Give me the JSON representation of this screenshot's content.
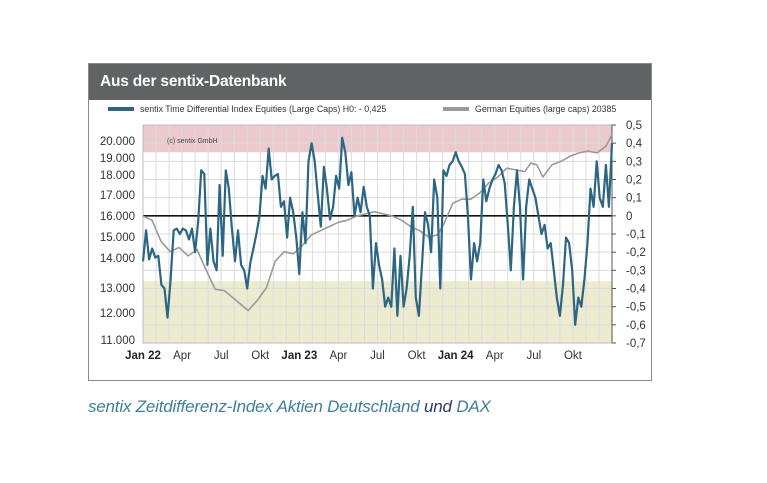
{
  "header": {
    "title": "Aus der sentix-Datenbank"
  },
  "caption": {
    "part1": "sentix Zeitdifferenz-Index Aktien Deutschland",
    "and_word": "und",
    "part2": "DAX"
  },
  "chart_data": {
    "type": "line",
    "copyright": "(c) sentix GmbH",
    "x_ticks": [
      {
        "label": "Jan 22",
        "bold": true,
        "week": 0
      },
      {
        "label": "Apr",
        "bold": false,
        "week": 13
      },
      {
        "label": "Jul",
        "bold": false,
        "week": 26
      },
      {
        "label": "Okt",
        "bold": false,
        "week": 39
      },
      {
        "label": "Jan 23",
        "bold": true,
        "week": 52
      },
      {
        "label": "Apr",
        "bold": false,
        "week": 65
      },
      {
        "label": "Jul",
        "bold": false,
        "week": 78
      },
      {
        "label": "Okt",
        "bold": false,
        "week": 91
      },
      {
        "label": "Jan 24",
        "bold": true,
        "week": 104
      },
      {
        "label": "Apr",
        "bold": false,
        "week": 117
      },
      {
        "label": "Jul",
        "bold": false,
        "week": 130
      },
      {
        "label": "Okt",
        "bold": false,
        "week": 143
      }
    ],
    "x_range_weeks": [
      0,
      156
    ],
    "left_axis": {
      "ticks": [
        "20.000",
        "19.000",
        "18.000",
        "17.000",
        "16.000",
        "15.000",
        "14.000",
        "13.000",
        "12.000",
        "11.000"
      ],
      "values": [
        20000,
        19000,
        18000,
        17000,
        16000,
        15000,
        14000,
        13000,
        12000,
        11000
      ]
    },
    "right_axis": {
      "ticks": [
        "0,5",
        "0,4",
        "0,3",
        "0,2",
        "0,1",
        "0",
        "-0,1",
        "-0,2",
        "-0,3",
        "-0,4",
        "-0,5",
        "-0,6",
        "-0,7"
      ],
      "range": [
        -0.7,
        0.5
      ]
    },
    "bands": [
      {
        "name": "upper-extreme-zone",
        "from": 0.35,
        "to": 0.5,
        "color": "#ecc9cd"
      },
      {
        "name": "lower-extreme-zone",
        "from": -0.7,
        "to": -0.36,
        "color": "#ecebd0"
      }
    ],
    "series": [
      {
        "name": "sentix Time Differential  Index Equities (Large Caps) H0: - 0,425",
        "axis": "right",
        "color": "#2c6683",
        "values": [
          -0.25,
          -0.08,
          -0.24,
          -0.18,
          -0.23,
          -0.22,
          -0.38,
          -0.4,
          -0.56,
          -0.35,
          -0.08,
          -0.07,
          -0.1,
          -0.07,
          -0.08,
          -0.13,
          -0.07,
          -0.2,
          -0.03,
          0.25,
          0.23,
          -0.27,
          -0.07,
          -0.25,
          -0.3,
          0.17,
          -0.22,
          0.25,
          0.15,
          -0.07,
          -0.25,
          -0.08,
          -0.27,
          -0.3,
          -0.4,
          -0.26,
          -0.18,
          -0.1,
          0.0,
          0.22,
          0.15,
          0.37,
          0.2,
          0.22,
          0.23,
          0.05,
          0.08,
          -0.12,
          0.1,
          0.02,
          -0.12,
          -0.32,
          0.02,
          -0.15,
          0.3,
          0.4,
          0.3,
          0.12,
          -0.06,
          0.27,
          0.15,
          -0.02,
          0.05,
          0.22,
          0.15,
          0.43,
          0.35,
          0.17,
          0.24,
          0.0,
          0.1,
          0.02,
          0.16,
          0.05,
          0.0,
          -0.4,
          -0.15,
          -0.27,
          -0.35,
          -0.5,
          -0.45,
          -0.5,
          -0.18,
          -0.55,
          -0.22,
          -0.5,
          -0.4,
          -0.22,
          0.05,
          -0.45,
          -0.55,
          -0.28,
          0.02,
          -0.05,
          -0.2,
          0.2,
          0.1,
          -0.4,
          0.25,
          0.22,
          0.28,
          0.3,
          0.35,
          0.3,
          0.27,
          0.23,
          0.0,
          -0.35,
          -0.15,
          -0.25,
          -0.15,
          0.2,
          0.08,
          0.15,
          0.2,
          0.23,
          0.28,
          0.25,
          0.18,
          -0.05,
          -0.3,
          0.05,
          0.25,
          0.05,
          -0.35,
          0.05,
          0.2,
          0.15,
          0.1,
          0.0,
          -0.1,
          -0.05,
          -0.18,
          -0.15,
          -0.3,
          -0.45,
          -0.55,
          -0.38,
          -0.12,
          -0.15,
          -0.3,
          -0.6,
          -0.45,
          -0.5,
          -0.35,
          -0.15,
          0.15,
          0.05,
          0.3,
          0.1,
          0.05,
          0.28,
          0.05,
          0.4
        ],
        "values_x_range": [
          0,
          156
        ]
      },
      {
        "name": "German Equities (large caps) 20385",
        "axis": "left",
        "color": "#9a9a9a",
        "points": [
          [
            0,
            16000
          ],
          [
            3,
            15800
          ],
          [
            6,
            14800
          ],
          [
            9,
            14300
          ],
          [
            12,
            14500
          ],
          [
            15,
            14100
          ],
          [
            18,
            14400
          ],
          [
            21,
            13600
          ],
          [
            24,
            12950
          ],
          [
            27,
            12900
          ],
          [
            30,
            12600
          ],
          [
            33,
            12300
          ],
          [
            35,
            12100
          ],
          [
            38,
            12500
          ],
          [
            41,
            13000
          ],
          [
            44,
            13900
          ],
          [
            47,
            14300
          ],
          [
            50,
            14200
          ],
          [
            53,
            14600
          ],
          [
            56,
            15100
          ],
          [
            59,
            15300
          ],
          [
            62,
            15500
          ],
          [
            65,
            15700
          ],
          [
            68,
            15800
          ],
          [
            71,
            16000
          ],
          [
            74,
            16100
          ],
          [
            77,
            16200
          ],
          [
            80,
            16100
          ],
          [
            83,
            16000
          ],
          [
            86,
            15800
          ],
          [
            89,
            15500
          ],
          [
            92,
            15300
          ],
          [
            95,
            15000
          ],
          [
            98,
            15100
          ],
          [
            100,
            15600
          ],
          [
            103,
            16600
          ],
          [
            106,
            16800
          ],
          [
            109,
            16800
          ],
          [
            112,
            17100
          ],
          [
            115,
            17600
          ],
          [
            118,
            17900
          ],
          [
            121,
            18400
          ],
          [
            124,
            18300
          ],
          [
            127,
            18200
          ],
          [
            129,
            18700
          ],
          [
            131,
            18600
          ],
          [
            133,
            17900
          ],
          [
            136,
            18600
          ],
          [
            139,
            18800
          ],
          [
            142,
            19100
          ],
          [
            145,
            19300
          ],
          [
            148,
            19400
          ],
          [
            151,
            19300
          ],
          [
            154,
            19700
          ],
          [
            156,
            20385
          ]
        ],
        "points_x_unit": "week"
      }
    ]
  }
}
